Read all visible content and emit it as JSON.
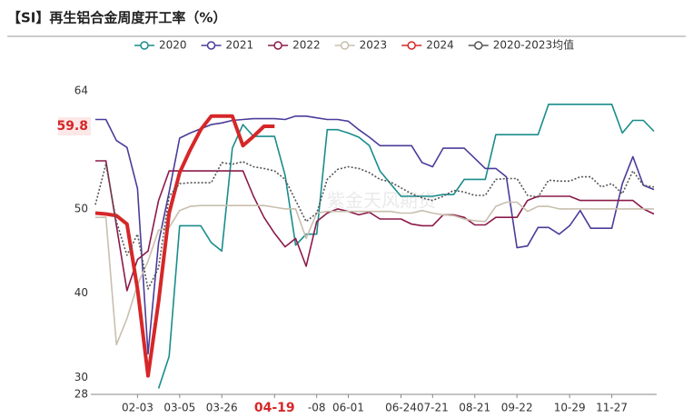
{
  "chart_data": {
    "type": "line",
    "title": "【SI】再生铝合金周度开工率（%）",
    "watermark": "紫金天风期货",
    "categories": [
      null,
      null,
      null,
      null,
      "02-03",
      null,
      null,
      null,
      "03-05",
      null,
      null,
      null,
      "03-26",
      null,
      null,
      null,
      null,
      "04-19",
      null,
      null,
      null,
      "-08",
      null,
      null,
      "06-01",
      null,
      null,
      null,
      null,
      "06-24",
      null,
      null,
      "07-21",
      null,
      null,
      null,
      "08-21",
      null,
      null,
      null,
      "09-22",
      null,
      null,
      null,
      null,
      "10-29",
      null,
      null,
      null,
      "11-27",
      null,
      null,
      null,
      null
    ],
    "ylim": [
      28,
      64
    ],
    "yticks": [
      28,
      30,
      40,
      50,
      64
    ],
    "grid": false,
    "highlight_value": 59.8,
    "highlight_category": "04-19",
    "highlight_color": "#d62728",
    "series": [
      {
        "name": "2020",
        "color": "#1a8c8c",
        "values": [
          null,
          null,
          null,
          null,
          null,
          null,
          28.7,
          32.5,
          48,
          48,
          48,
          46,
          45,
          57.2,
          60,
          58.6,
          58.6,
          58.6,
          54,
          45.7,
          47,
          47,
          59.4,
          59.4,
          59,
          58.5,
          57.5,
          54.5,
          53,
          51.5,
          51.5,
          51.5,
          51.5,
          51.7,
          51.7,
          53.5,
          53.5,
          53.5,
          58.8,
          58.8,
          58.8,
          58.8,
          58.8,
          62.4,
          62.4,
          62.4,
          62.4,
          62.4,
          62.4,
          62.4,
          59,
          60.5,
          60.5,
          59.2
        ]
      },
      {
        "name": "2021",
        "color": "#4b3c9a",
        "values": [
          60.6,
          60.6,
          58.1,
          57.3,
          52.4,
          32.8,
          46,
          52,
          58.4,
          59,
          59.5,
          60,
          60.2,
          60.5,
          60.6,
          60.7,
          60.7,
          60.7,
          60.6,
          61,
          61,
          60.8,
          60.6,
          60.6,
          60.4,
          59.4,
          58.5,
          57.5,
          57.5,
          57.5,
          57.5,
          55.5,
          55,
          57.2,
          57.2,
          57.2,
          56,
          54.8,
          54.8,
          53.8,
          45.4,
          45.6,
          47.8,
          47.8,
          47,
          48,
          49.8,
          47.7,
          47.7,
          47.7,
          53,
          56.2,
          52.8,
          52.3
        ]
      },
      {
        "name": "2022",
        "color": "#8b1a4a",
        "values": [
          55.7,
          55.7,
          48,
          40.3,
          44,
          45,
          51,
          54.5,
          54.5,
          54.5,
          54.5,
          54.5,
          54.5,
          54.5,
          54.5,
          51.5,
          49,
          47.1,
          45.5,
          46.5,
          43.2,
          48.5,
          49.5,
          50,
          49.7,
          49.3,
          49.6,
          48.8,
          48.8,
          48.8,
          48.2,
          48,
          48,
          49.3,
          49.3,
          49,
          48.1,
          48.1,
          49,
          49,
          49,
          51,
          51.5,
          51.5,
          51.5,
          51.5,
          51,
          51,
          51,
          51,
          51,
          51,
          50,
          49.4
        ]
      },
      {
        "name": "2023",
        "color": "#c8bfae",
        "values": [
          49,
          49,
          33.9,
          37,
          41,
          43.8,
          47.5,
          47.8,
          49.8,
          50.3,
          50.4,
          50.4,
          50.4,
          50.4,
          50.4,
          50.4,
          50.4,
          50.2,
          50,
          50,
          46.5,
          49.5,
          49.7,
          49.7,
          49.7,
          49.7,
          49.7,
          49.7,
          49.7,
          49.5,
          49.5,
          49.8,
          49.5,
          49.3,
          49.2,
          48.8,
          48.6,
          48.5,
          50.3,
          50.8,
          50.8,
          49.7,
          50.3,
          50.3,
          50,
          50,
          50,
          50,
          50,
          50,
          50,
          50,
          50,
          50
        ]
      },
      {
        "name": "2024",
        "color": "#d62728",
        "width": 4,
        "values": [
          49.5,
          49.4,
          49.2,
          48.2,
          40.5,
          30.2,
          39,
          49.5,
          54.3,
          57,
          59.4,
          61,
          61,
          61,
          57.5,
          58.6,
          59.8,
          59.8,
          null,
          null,
          null,
          null,
          null,
          null,
          null,
          null,
          null,
          null,
          null,
          null,
          null,
          null,
          null,
          null,
          null,
          null,
          null,
          null,
          null,
          null,
          null,
          null,
          null,
          null,
          null,
          null,
          null,
          null,
          null,
          null,
          null,
          null,
          null,
          null
        ]
      },
      {
        "name": "2020-2023均值",
        "color": "#555555",
        "style": "dotted",
        "values": [
          50.5,
          55.3,
          48.5,
          44.5,
          47,
          40.5,
          43,
          51.5,
          53,
          53.1,
          53.1,
          53.1,
          55.5,
          55.3,
          55.6,
          55,
          54.8,
          54.5,
          53.5,
          51,
          48.5,
          49.5,
          53.5,
          54.7,
          55,
          54.8,
          54.3,
          53.5,
          53.2,
          52.5,
          51.8,
          51.3,
          51,
          51.5,
          52.2,
          52,
          51.6,
          51.6,
          53.5,
          53.6,
          53.6,
          51.6,
          51.4,
          53.4,
          53.3,
          53.3,
          53.8,
          53.8,
          52.6,
          53,
          51.8,
          54.5,
          52.8,
          52.6
        ]
      }
    ]
  }
}
